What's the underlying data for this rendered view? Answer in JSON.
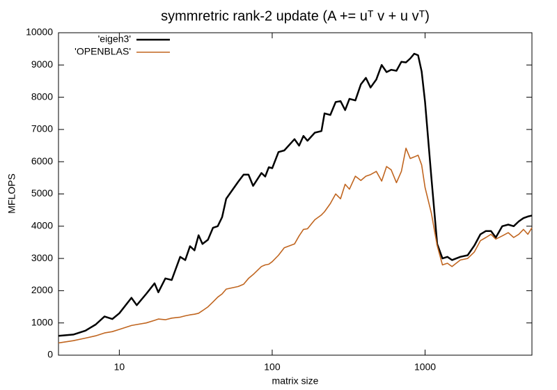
{
  "chart_data": {
    "type": "line",
    "title": "symmretric rank-2 update (A += uᵀ v + u vᵀ)",
    "x_label": "matrix size",
    "y_label": "MFLOPS",
    "xscale": "log",
    "xlim": [
      4,
      5000
    ],
    "xticks": [
      10,
      100,
      1000
    ],
    "ylim": [
      0,
      10000
    ],
    "yticks": [
      0,
      1000,
      2000,
      3000,
      4000,
      5000,
      6000,
      7000,
      8000,
      9000,
      10000
    ],
    "grid": false,
    "legend": "top-left",
    "x": [
      4,
      5,
      6,
      7,
      8,
      9,
      10,
      12,
      13,
      15,
      17,
      18,
      20,
      22,
      25,
      27,
      29,
      31,
      33,
      35,
      38,
      41,
      44,
      47,
      50,
      60,
      65,
      70,
      75,
      85,
      90,
      95,
      100,
      110,
      120,
      140,
      150,
      160,
      170,
      190,
      210,
      220,
      240,
      260,
      280,
      300,
      320,
      350,
      380,
      410,
      440,
      480,
      520,
      560,
      600,
      650,
      700,
      750,
      800,
      850,
      900,
      950,
      1000,
      1100,
      1200,
      1300,
      1400,
      1500,
      1700,
      1900,
      2100,
      2300,
      2500,
      2700,
      2900,
      3200,
      3500,
      3800,
      4100,
      4400,
      4700,
      5000
    ],
    "series": [
      {
        "name": "'eigen3'",
        "color": "#000000",
        "width": 2.5,
        "values": [
          600,
          640,
          760,
          950,
          1200,
          1120,
          1300,
          1780,
          1550,
          1900,
          2230,
          1950,
          2380,
          2330,
          3050,
          2950,
          3380,
          3250,
          3720,
          3450,
          3580,
          3950,
          4000,
          4280,
          4850,
          5380,
          5600,
          5600,
          5250,
          5650,
          5540,
          5830,
          5800,
          6300,
          6350,
          6700,
          6500,
          6800,
          6650,
          6900,
          6950,
          7500,
          7450,
          7850,
          7880,
          7600,
          7950,
          7900,
          8400,
          8600,
          8300,
          8550,
          9000,
          8780,
          8850,
          8820,
          9100,
          9080,
          9200,
          9350,
          9300,
          8800,
          7850,
          5500,
          3450,
          3000,
          3050,
          2950,
          3050,
          3100,
          3400,
          3750,
          3850,
          3850,
          3650,
          4000,
          4050,
          4000,
          4150,
          4250,
          4300,
          4330
        ]
      },
      {
        "name": "'OPENBLAS'",
        "color": "#c0651f",
        "width": 1.6,
        "values": [
          380,
          450,
          530,
          600,
          690,
          730,
          800,
          920,
          950,
          1000,
          1080,
          1120,
          1100,
          1150,
          1180,
          1220,
          1250,
          1270,
          1300,
          1380,
          1500,
          1650,
          1800,
          1900,
          2050,
          2130,
          2200,
          2380,
          2500,
          2750,
          2800,
          2820,
          2900,
          3100,
          3330,
          3450,
          3700,
          3900,
          3920,
          4200,
          4350,
          4450,
          4700,
          5000,
          4850,
          5300,
          5150,
          5550,
          5420,
          5550,
          5600,
          5700,
          5400,
          5850,
          5750,
          5350,
          5700,
          6420,
          6100,
          6150,
          6200,
          5900,
          5200,
          4400,
          3400,
          2800,
          2850,
          2750,
          2950,
          3000,
          3200,
          3550,
          3650,
          3750,
          3600,
          3700,
          3800,
          3650,
          3750,
          3900,
          3750,
          3950
        ]
      }
    ]
  }
}
